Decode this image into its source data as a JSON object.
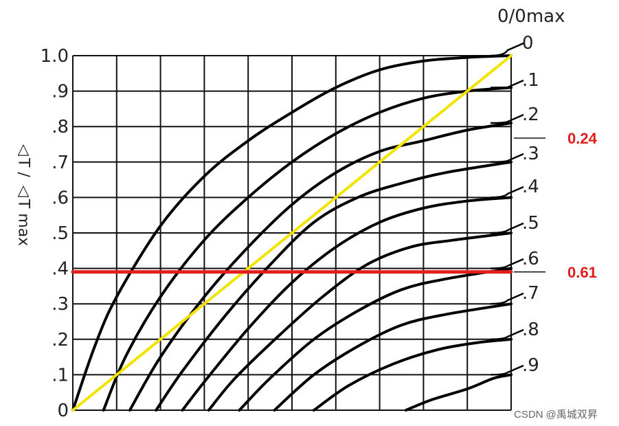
{
  "chart_data": {
    "type": "line",
    "title": "",
    "xlabel": "",
    "ylabel": "△T / △T max",
    "legend_title": "0/0max",
    "x_range": [
      0,
      1
    ],
    "ylim": [
      0,
      1
    ],
    "y_ticks": [
      "0",
      ".1",
      ".2",
      ".3",
      ".4",
      ".5",
      ".6",
      ".7",
      ".8",
      ".9",
      "1.0"
    ],
    "grid": true,
    "series": [
      {
        "name": "0",
        "color": "#000000",
        "points": [
          [
            0.0,
            0.0
          ],
          [
            0.05,
            0.18
          ],
          [
            0.1,
            0.32
          ],
          [
            0.2,
            0.52
          ],
          [
            0.3,
            0.66
          ],
          [
            0.4,
            0.76
          ],
          [
            0.5,
            0.84
          ],
          [
            0.6,
            0.91
          ],
          [
            0.7,
            0.96
          ],
          [
            0.8,
            0.985
          ],
          [
            0.9,
            0.995
          ],
          [
            1.0,
            1.0
          ]
        ]
      },
      {
        "name": ".1",
        "color": "#000000",
        "points": [
          [
            0.07,
            0.0
          ],
          [
            0.12,
            0.15
          ],
          [
            0.2,
            0.32
          ],
          [
            0.3,
            0.48
          ],
          [
            0.4,
            0.6
          ],
          [
            0.5,
            0.7
          ],
          [
            0.6,
            0.78
          ],
          [
            0.7,
            0.84
          ],
          [
            0.8,
            0.88
          ],
          [
            0.9,
            0.9
          ],
          [
            1.0,
            0.91
          ]
        ]
      },
      {
        "name": ".2",
        "color": "#000000",
        "points": [
          [
            0.13,
            0.0
          ],
          [
            0.2,
            0.15
          ],
          [
            0.3,
            0.32
          ],
          [
            0.4,
            0.46
          ],
          [
            0.5,
            0.58
          ],
          [
            0.6,
            0.67
          ],
          [
            0.7,
            0.73
          ],
          [
            0.8,
            0.76
          ],
          [
            0.9,
            0.79
          ],
          [
            1.0,
            0.81
          ]
        ]
      },
      {
        "name": ".3",
        "color": "#000000",
        "points": [
          [
            0.19,
            0.0
          ],
          [
            0.25,
            0.11
          ],
          [
            0.35,
            0.27
          ],
          [
            0.45,
            0.41
          ],
          [
            0.55,
            0.53
          ],
          [
            0.65,
            0.6
          ],
          [
            0.75,
            0.64
          ],
          [
            0.85,
            0.67
          ],
          [
            1.0,
            0.7
          ]
        ]
      },
      {
        "name": ".4",
        "color": "#000000",
        "points": [
          [
            0.25,
            0.0
          ],
          [
            0.3,
            0.08
          ],
          [
            0.4,
            0.23
          ],
          [
            0.5,
            0.36
          ],
          [
            0.6,
            0.46
          ],
          [
            0.7,
            0.53
          ],
          [
            0.8,
            0.57
          ],
          [
            0.9,
            0.59
          ],
          [
            1.0,
            0.6
          ]
        ]
      },
      {
        "name": ".5",
        "color": "#000000",
        "points": [
          [
            0.31,
            0.0
          ],
          [
            0.37,
            0.09
          ],
          [
            0.47,
            0.21
          ],
          [
            0.57,
            0.32
          ],
          [
            0.67,
            0.41
          ],
          [
            0.77,
            0.46
          ],
          [
            0.87,
            0.48
          ],
          [
            1.0,
            0.5
          ]
        ]
      },
      {
        "name": ".6",
        "color": "#000000",
        "points": [
          [
            0.38,
            0.0
          ],
          [
            0.45,
            0.09
          ],
          [
            0.55,
            0.2
          ],
          [
            0.65,
            0.28
          ],
          [
            0.75,
            0.34
          ],
          [
            0.85,
            0.37
          ],
          [
            1.0,
            0.4
          ]
        ]
      },
      {
        "name": ".7",
        "color": "#000000",
        "points": [
          [
            0.46,
            0.0
          ],
          [
            0.55,
            0.1
          ],
          [
            0.65,
            0.18
          ],
          [
            0.75,
            0.24
          ],
          [
            0.85,
            0.27
          ],
          [
            1.0,
            0.3
          ]
        ]
      },
      {
        "name": ".8",
        "color": "#000000",
        "points": [
          [
            0.55,
            0.0
          ],
          [
            0.63,
            0.07
          ],
          [
            0.73,
            0.13
          ],
          [
            0.83,
            0.17
          ],
          [
            0.92,
            0.19
          ],
          [
            1.0,
            0.2
          ]
        ]
      },
      {
        "name": ".9",
        "color": "#000000",
        "points": [
          [
            0.76,
            0.0
          ],
          [
            0.82,
            0.03
          ],
          [
            0.9,
            0.06
          ],
          [
            0.96,
            0.09
          ],
          [
            1.0,
            0.1
          ]
        ]
      },
      {
        "name": "",
        "color": "#f2e300",
        "points": [
          [
            0.0,
            0.0
          ],
          [
            1.0,
            1.0
          ]
        ]
      },
      {
        "name": "",
        "color": "#e11d1d",
        "points": [
          [
            0.0,
            0.39
          ],
          [
            1.0,
            0.39
          ]
        ]
      }
    ],
    "annotations": [
      {
        "text": "0.24",
        "y": 0.8,
        "color": "#e11d1d"
      },
      {
        "text": "0.61",
        "y": 0.39,
        "color": "#e11d1d"
      }
    ]
  },
  "watermark": "CSDN @禹城双昇"
}
